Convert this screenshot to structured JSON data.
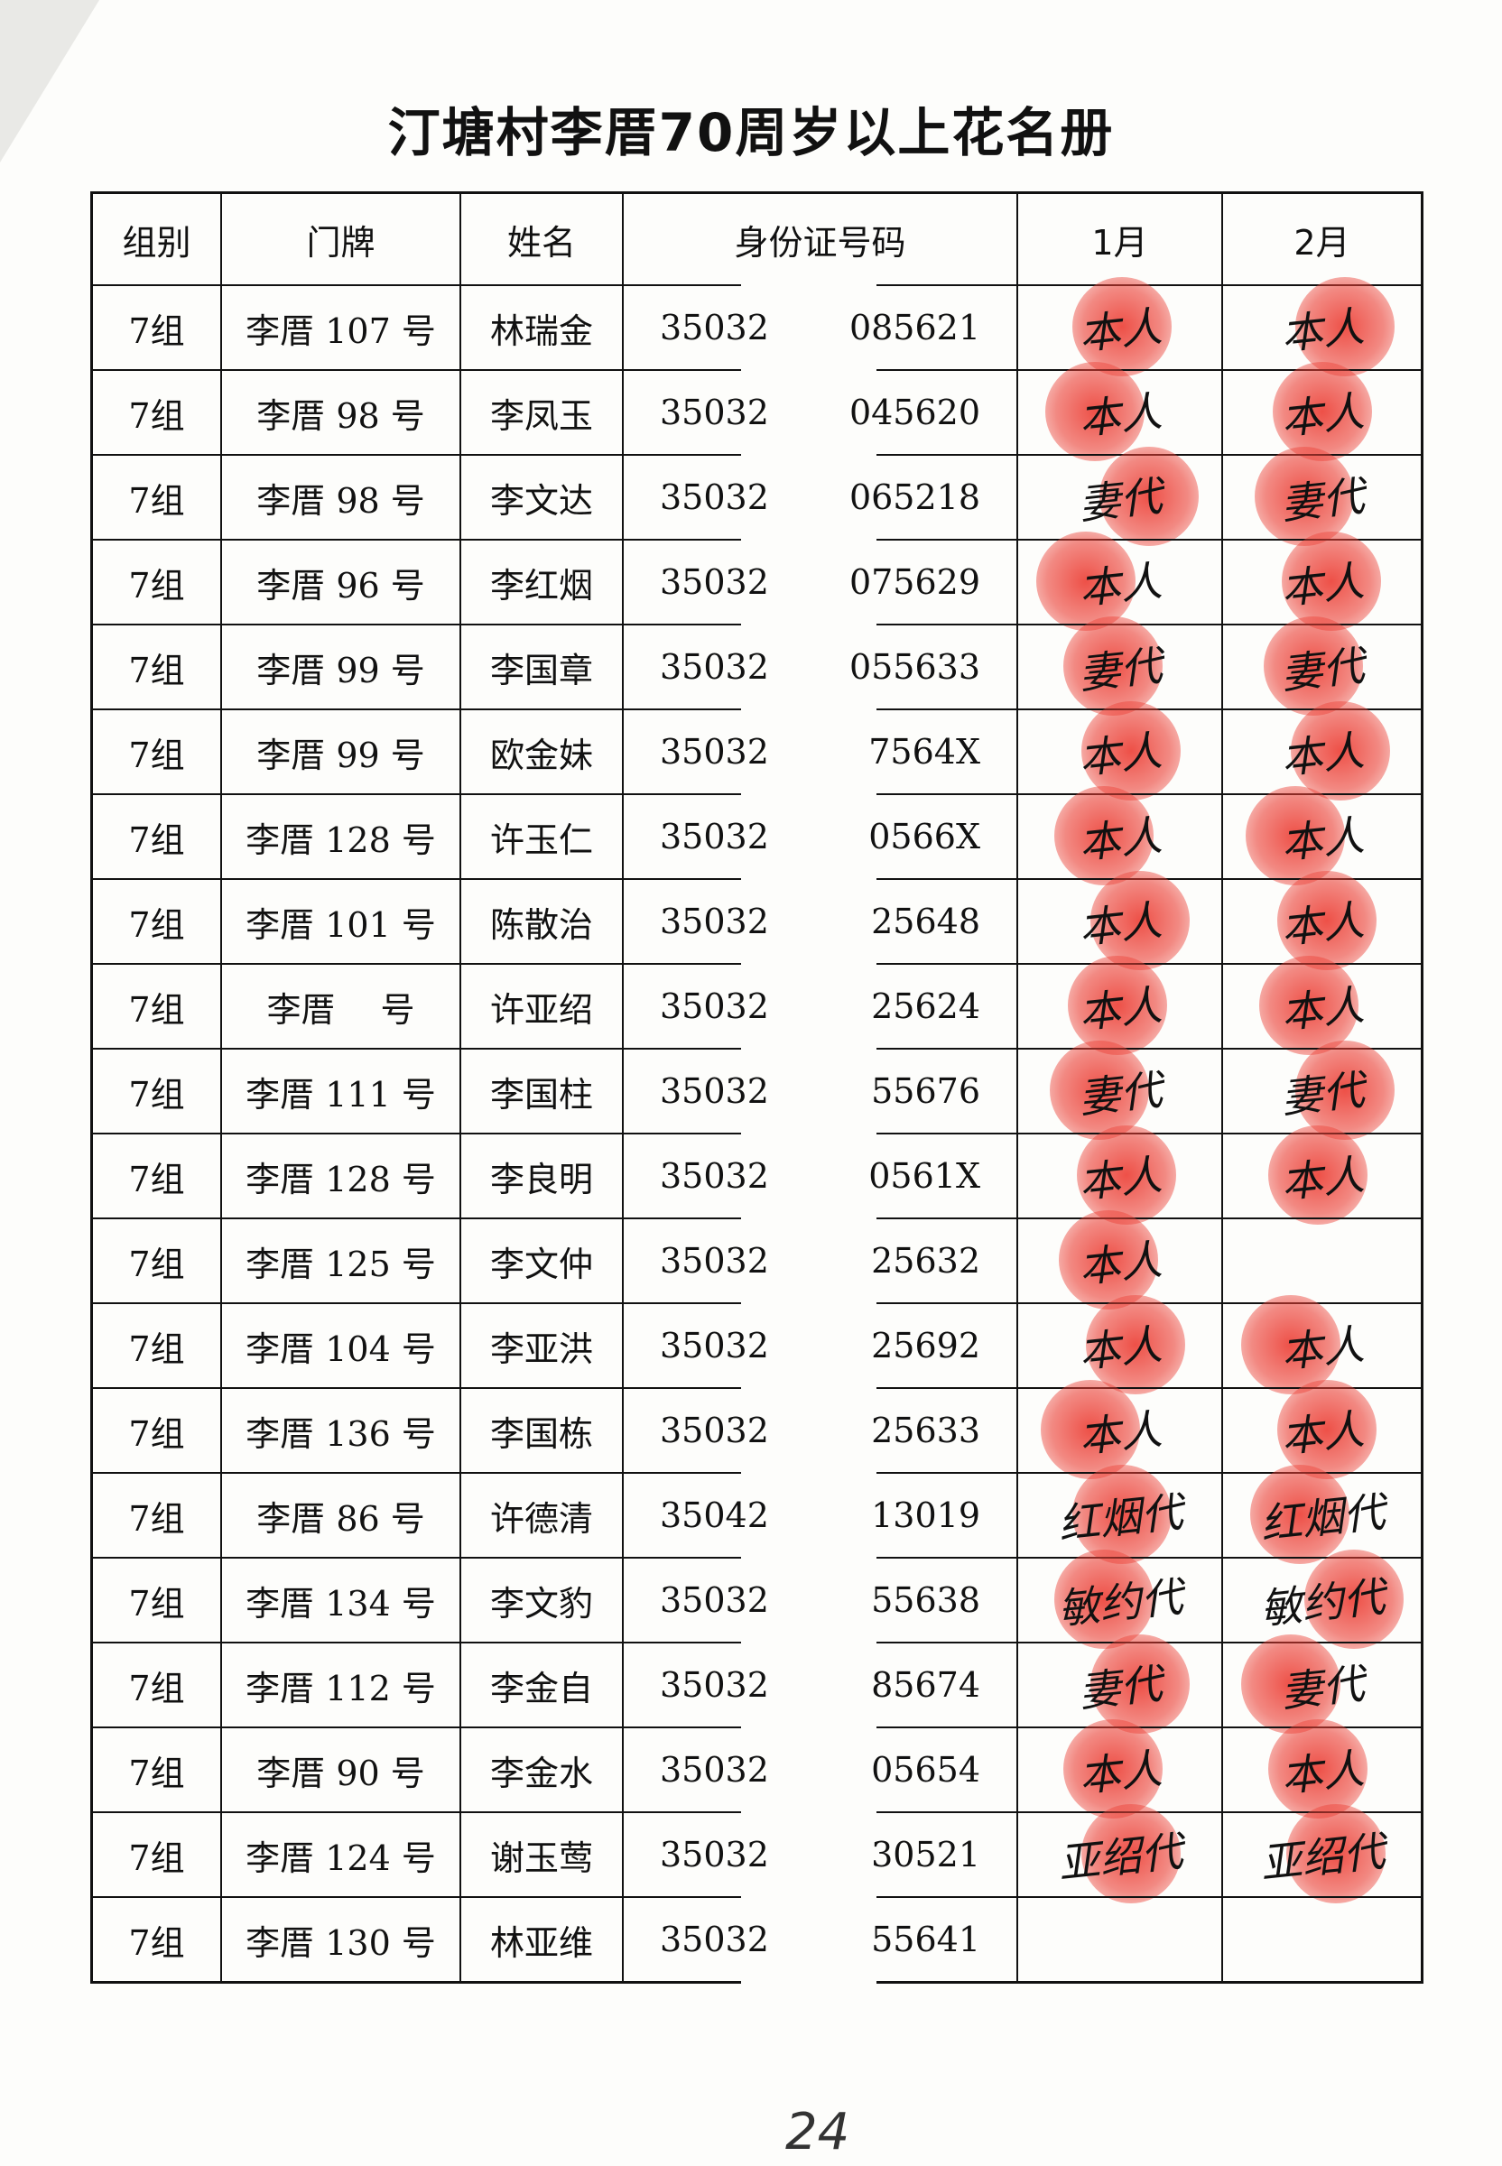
{
  "title": "汀塘村李厝70周岁以上花名册",
  "headers": [
    "组别",
    "门牌",
    "姓名",
    "身份证号码",
    "1月",
    "2月"
  ],
  "rows": [
    {
      "group": "7组",
      "door": "李厝 107 号",
      "name": "林瑞金",
      "id_prefix": "35032",
      "id_suffix": "085621",
      "sig1": "本人",
      "sig2": "本人"
    },
    {
      "group": "7组",
      "door": "李厝 98 号",
      "name": "李凤玉",
      "id_prefix": "35032",
      "id_suffix": "045620",
      "sig1": "本人",
      "sig2": "本人"
    },
    {
      "group": "7组",
      "door": "李厝 98 号",
      "name": "李文达",
      "id_prefix": "35032",
      "id_suffix": "065218",
      "sig1": "妻代",
      "sig2": "妻代"
    },
    {
      "group": "7组",
      "door": "李厝 96 号",
      "name": "李红烟",
      "id_prefix": "35032",
      "id_suffix": "075629",
      "sig1": "本人",
      "sig2": "本人"
    },
    {
      "group": "7组",
      "door": "李厝 99 号",
      "name": "李国章",
      "id_prefix": "35032",
      "id_suffix": "055633",
      "sig1": "妻代",
      "sig2": "妻代"
    },
    {
      "group": "7组",
      "door": "李厝 99 号",
      "name": "欧金妹",
      "id_prefix": "35032",
      "id_suffix": "7564X",
      "sig1": "本人",
      "sig2": "本人"
    },
    {
      "group": "7组",
      "door": "李厝 128 号",
      "name": "许玉仁",
      "id_prefix": "35032",
      "id_suffix": "0566X",
      "sig1": "本人",
      "sig2": "本人"
    },
    {
      "group": "7组",
      "door": "李厝 101 号",
      "name": "陈散治",
      "id_prefix": "35032",
      "id_suffix": "25648",
      "sig1": "本人",
      "sig2": "本人"
    },
    {
      "group": "7组",
      "door": "李厝　 号",
      "name": "许亚绍",
      "id_prefix": "35032",
      "id_suffix": "25624",
      "sig1": "本人",
      "sig2": "本人"
    },
    {
      "group": "7组",
      "door": "李厝 111 号",
      "name": "李国柱",
      "id_prefix": "35032",
      "id_suffix": "55676",
      "sig1": "妻代",
      "sig2": "妻代"
    },
    {
      "group": "7组",
      "door": "李厝 128 号",
      "name": "李良明",
      "id_prefix": "35032",
      "id_suffix": "0561X",
      "sig1": "本人",
      "sig2": "本人"
    },
    {
      "group": "7组",
      "door": "李厝 125 号",
      "name": "李文仲",
      "id_prefix": "35032",
      "id_suffix": "25632",
      "sig1": "本人",
      "sig2": ""
    },
    {
      "group": "7组",
      "door": "李厝 104 号",
      "name": "李亚洪",
      "id_prefix": "35032",
      "id_suffix": "25692",
      "sig1": "本人",
      "sig2": "本人"
    },
    {
      "group": "7组",
      "door": "李厝 136 号",
      "name": "李国栋",
      "id_prefix": "35032",
      "id_suffix": "25633",
      "sig1": "本人",
      "sig2": "本人"
    },
    {
      "group": "7组",
      "door": "李厝 86 号",
      "name": "许德清",
      "id_prefix": "35042",
      "id_suffix": "13019",
      "sig1": "红烟代",
      "sig2": "红烟代"
    },
    {
      "group": "7组",
      "door": "李厝 134 号",
      "name": "李文豹",
      "id_prefix": "35032",
      "id_suffix": "55638",
      "sig1": "敏约代",
      "sig2": "敏约代"
    },
    {
      "group": "7组",
      "door": "李厝 112 号",
      "name": "李金自",
      "id_prefix": "35032",
      "id_suffix": "85674",
      "sig1": "妻代",
      "sig2": "妻代"
    },
    {
      "group": "7组",
      "door": "李厝 90 号",
      "name": "李金水",
      "id_prefix": "35032",
      "id_suffix": "05654",
      "sig1": "本人",
      "sig2": "本人"
    },
    {
      "group": "7组",
      "door": "李厝 124 号",
      "name": "谢玉莺",
      "id_prefix": "35032",
      "id_suffix": "30521",
      "sig1": "亚绍代",
      "sig2": "亚绍代"
    },
    {
      "group": "7组",
      "door": "李厝 130 号",
      "name": "林亚维",
      "id_prefix": "35032",
      "id_suffix": "55641",
      "sig1": "",
      "sig2": ""
    }
  ],
  "page_number": "24",
  "colors": {
    "ink": "#111111",
    "fingerprint": "#e8352c",
    "paper": "#fdfdfb"
  }
}
